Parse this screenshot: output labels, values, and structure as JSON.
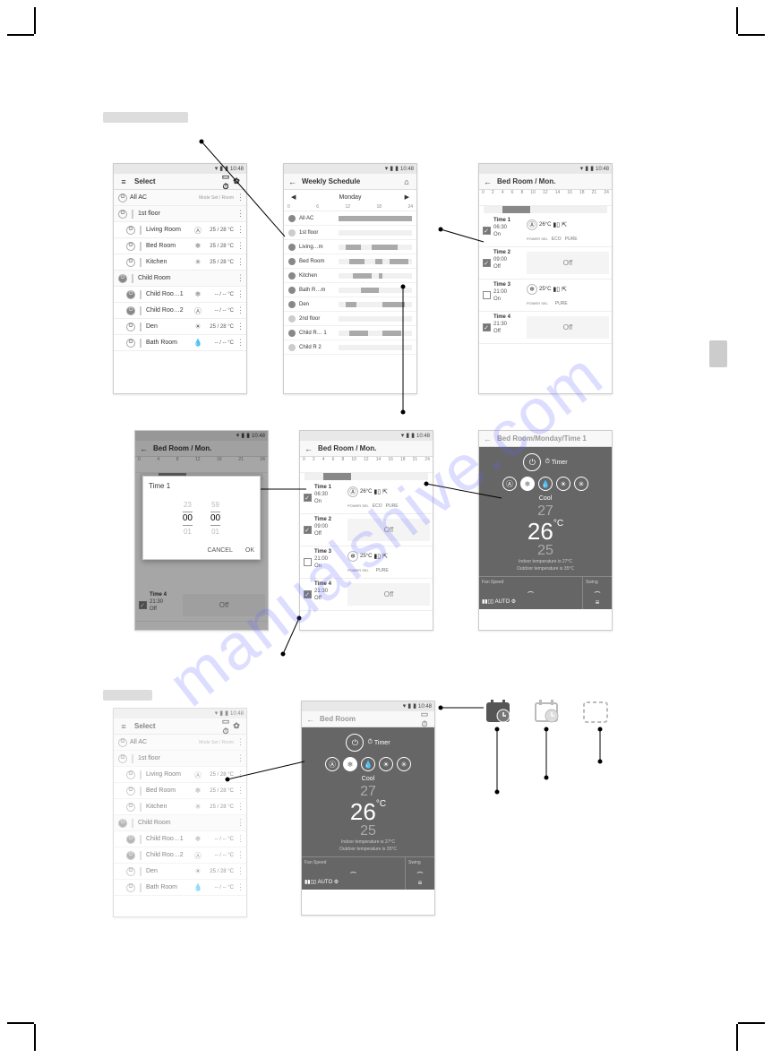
{
  "statusbar": {
    "time": "10:48"
  },
  "watermark": "manualshive.com",
  "s1": {
    "title": "Select",
    "hdr": "Mode   Set / Room",
    "groups": [
      {
        "name": "All AC",
        "on": false
      },
      {
        "name": "1st floor",
        "on": false,
        "rooms": [
          {
            "name": "Living Room",
            "mode": "Ⓐ",
            "temp": "25 / 28  °C"
          },
          {
            "name": "Bed Room",
            "mode": "❄",
            "temp": "25 / 28  °C"
          },
          {
            "name": "Kitchen",
            "mode": "✳",
            "temp": "25 / 28  °C"
          }
        ]
      },
      {
        "name": "Child Room",
        "on": true,
        "rooms": [
          {
            "name": "Child Roo…1",
            "mode": "❄",
            "temp": "-- / --  °C"
          },
          {
            "name": "Child Roo…2",
            "mode": "Ⓐ",
            "temp": "-- / --  °C"
          }
        ]
      },
      {
        "name": "",
        "on": false,
        "rooms": [
          {
            "name": "Den",
            "mode": "☀",
            "temp": "25 / 28  °C"
          },
          {
            "name": "Bath Room",
            "mode": "💧",
            "temp": "-- / --  °C"
          }
        ]
      }
    ]
  },
  "s2": {
    "title": "Weekly Schedule",
    "day": "Monday",
    "scale": [
      "0",
      "6",
      "12",
      "18",
      "24"
    ],
    "rows": [
      {
        "name": "All AC",
        "dot": true,
        "segs": [
          [
            0,
            100
          ]
        ]
      },
      {
        "name": "1st floor",
        "dot": false,
        "segs": []
      },
      {
        "name": "Living…m",
        "dot": false,
        "segs": [
          [
            10,
            30
          ],
          [
            45,
            80
          ]
        ]
      },
      {
        "name": "Bed Room",
        "dot": false,
        "segs": [
          [
            15,
            35
          ],
          [
            50,
            60
          ],
          [
            70,
            95
          ]
        ]
      },
      {
        "name": "Kitchen",
        "dot": false,
        "segs": [
          [
            20,
            45
          ],
          [
            55,
            60
          ]
        ]
      },
      {
        "name": "Bath R…m",
        "dot": false,
        "segs": [
          [
            30,
            55
          ]
        ]
      },
      {
        "name": "Den",
        "dot": false,
        "segs": [
          [
            10,
            25
          ],
          [
            60,
            90
          ]
        ]
      },
      {
        "name": "2nd floor",
        "dot": false,
        "segs": []
      },
      {
        "name": "Child R… 1",
        "dot": false,
        "segs": [
          [
            15,
            40
          ],
          [
            60,
            85
          ]
        ]
      },
      {
        "name": "Child R  2",
        "dot": false,
        "segs": []
      }
    ]
  },
  "s3": {
    "title": "Bed Room / Mon.",
    "scale": [
      "0",
      "2",
      "4",
      "6",
      "8",
      "10",
      "12",
      "14",
      "16",
      "18",
      "21",
      "24"
    ],
    "seg": [
      15,
      38
    ],
    "slots": [
      {
        "label": "Time 1",
        "time": "06:30",
        "state": "On",
        "checked": true,
        "detail": true,
        "temp": "26°C",
        "mode": "Ⓐ",
        "eco": "ECO",
        "pure": "PURE"
      },
      {
        "label": "Time 2",
        "time": "09:00",
        "state": "Off",
        "checked": true,
        "detail": false,
        "off": "Off"
      },
      {
        "label": "Time 3",
        "time": "21:00",
        "state": "On",
        "checked": false,
        "detail": true,
        "temp": "25°C",
        "mode": "❄",
        "pure": "PURE"
      },
      {
        "label": "Time 4",
        "time": "21:30",
        "state": "Off",
        "checked": true,
        "detail": false,
        "off": "Off"
      }
    ]
  },
  "s4": {
    "title": "Bed Room / Mon.",
    "modal": {
      "title": "Time 1",
      "h": [
        "23",
        "00",
        "01"
      ],
      "m": [
        "59",
        "00",
        "01"
      ],
      "cancel": "CANCEL",
      "ok": "OK"
    },
    "bottom": {
      "label": "Time 4",
      "time": "21:30",
      "state": "Off"
    }
  },
  "s5": {
    "title": "Bed Room / Mon."
  },
  "s6": {
    "title": "Bed Room/Monday/Time 1",
    "timer": "Timer",
    "mode": "Cool",
    "t_up": "27",
    "t_main": "26",
    "t_dn": "25",
    "unit": "°C",
    "info1": "Indoor temperature is   27°C",
    "info2": "Outdoor temperature is   35°C",
    "fan_lbl": "Fan Speed",
    "fan_auto": "AUTO",
    "swing_lbl": "Swing"
  },
  "s7": {
    "title": "Select"
  },
  "s8": {
    "title": "Bed Room",
    "timer": "Timer",
    "mode": "Cool",
    "t_up": "27",
    "t_main": "26",
    "t_dn": "25",
    "unit": "°C",
    "info1": "Indoor temperature is   27°C",
    "info2": "Outdoor temperature is   35°C",
    "fan_lbl": "Fan Speed",
    "fan_auto": "AUTO",
    "swing_lbl": "Swing"
  },
  "colors": {
    "sched_on": "#555555",
    "sched_off": "#b8b8b8",
    "sched_none": "#cccccc"
  }
}
